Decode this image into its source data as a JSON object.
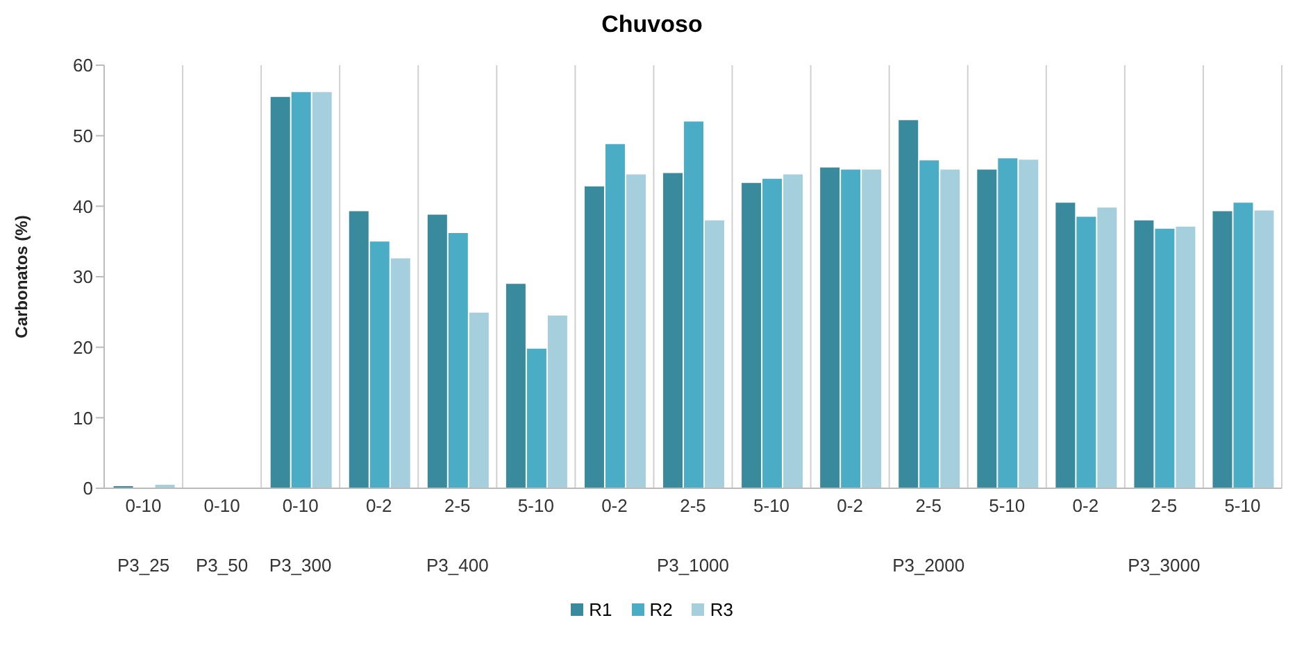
{
  "chart_data": {
    "type": "bar",
    "title": "Chuvoso",
    "ylabel": "Carbonatos (%)",
    "categories": [
      "0-10",
      "0-10",
      "0-10",
      "0-2",
      "2-5",
      "5-10",
      "0-2",
      "2-5",
      "5-10",
      "0-2",
      "2-5",
      "5-10",
      "0-2",
      "2-5",
      "5-10"
    ],
    "annotations": [
      "P3_25",
      "P3_50",
      "P3_300",
      "P3_400",
      "P3_1000",
      "P3_2000",
      "P3_3000"
    ],
    "series": [
      {
        "name": "R1",
        "color": "#3a8a9e",
        "values": [
          0.3,
          0,
          55.5,
          39.3,
          38.8,
          29,
          42.8,
          44.7,
          43.3,
          45.5,
          52.2,
          45.2,
          40.5,
          38,
          39.3
        ]
      },
      {
        "name": "R2",
        "color": "#4bacc6",
        "values": [
          0,
          0,
          56.2,
          35,
          36.2,
          19.8,
          48.8,
          52,
          43.9,
          45.2,
          46.5,
          46.8,
          38.5,
          36.8,
          40.5
        ]
      },
      {
        "name": "R3",
        "color": "#a5cfdc",
        "values": [
          0.5,
          0,
          56.2,
          32.6,
          24.9,
          24.5,
          44.5,
          38,
          44.5,
          45.2,
          45.2,
          46.6,
          39.8,
          37.1,
          39.4
        ]
      }
    ],
    "ylim": [
      0,
      60
    ],
    "yticks": [
      0,
      10,
      20,
      30,
      40,
      50,
      60
    ],
    "grid": "x",
    "legend": "bottom"
  }
}
